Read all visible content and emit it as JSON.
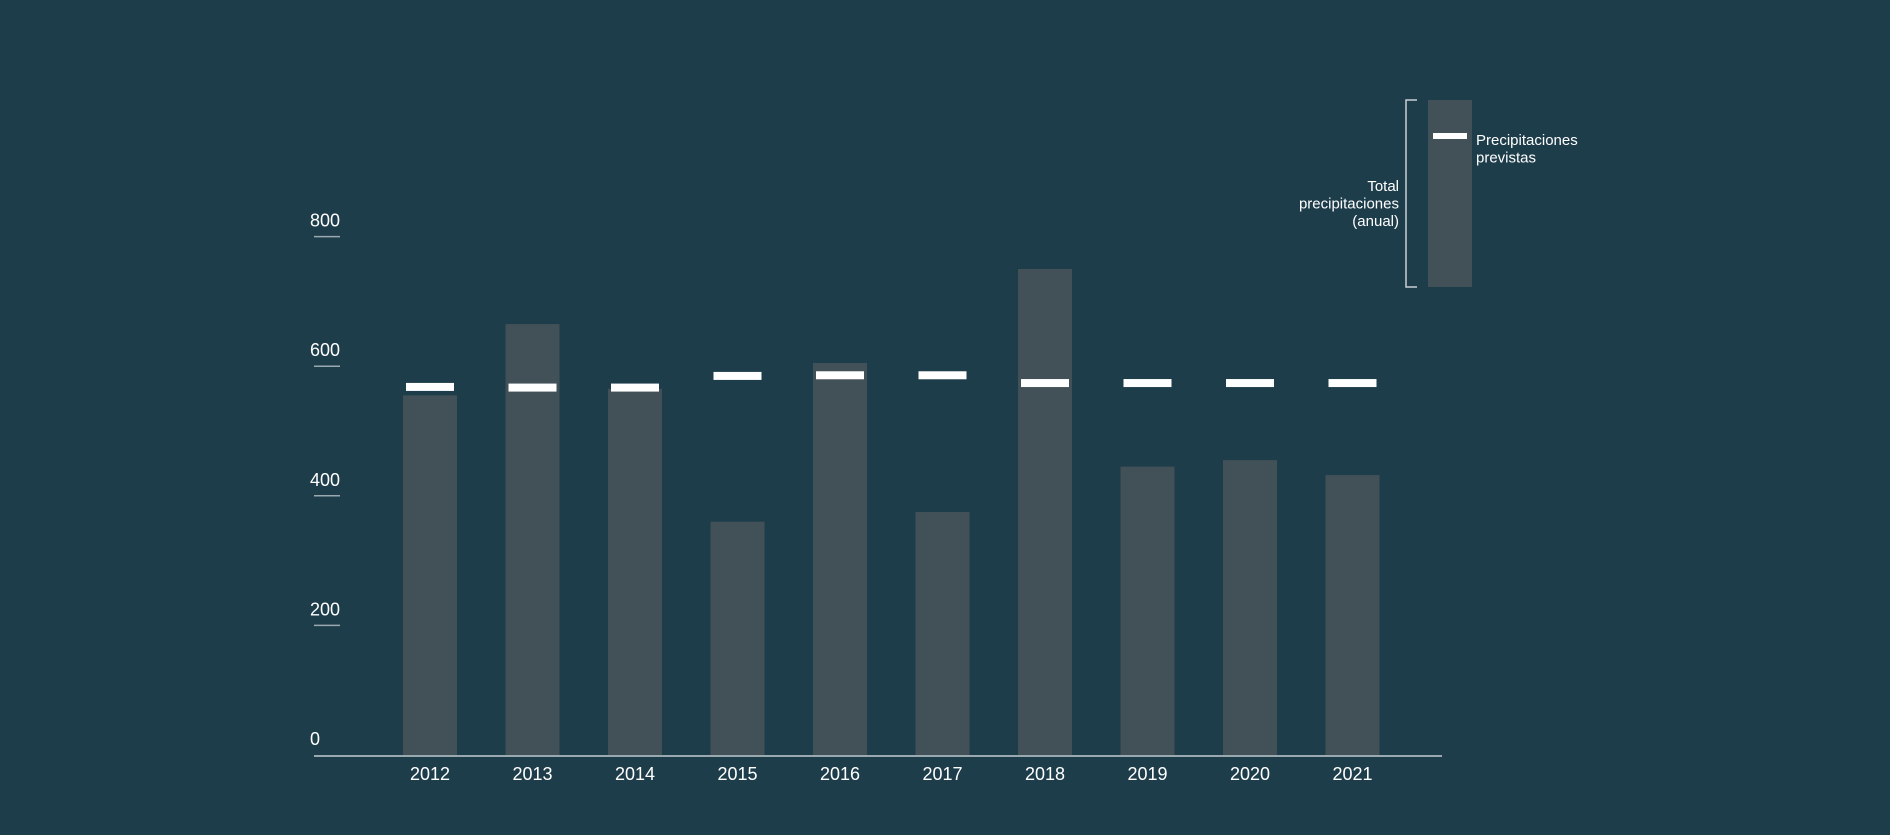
{
  "colors": {
    "background": "#1e3d4b",
    "bar": "#425158",
    "marker": "#ffffff",
    "axis": "#9aa9b0"
  },
  "legend": {
    "bar_label": [
      "Total",
      "precipitaciones",
      "(anual)"
    ],
    "marker_label": [
      "Precipitaciones",
      "previstas"
    ]
  },
  "chart_data": {
    "type": "bar",
    "title": "",
    "xlabel": "",
    "ylabel": "",
    "ylim": [
      0,
      800
    ],
    "yticks": [
      0,
      200,
      400,
      600,
      800
    ],
    "grid": false,
    "legend_position": "top-right",
    "categories": [
      "2012",
      "2013",
      "2014",
      "2015",
      "2016",
      "2017",
      "2018",
      "2019",
      "2020",
      "2021"
    ],
    "series": [
      {
        "name": "Total precipitaciones (anual)",
        "type": "bar",
        "values": [
          555,
          665,
          565,
          360,
          605,
          375,
          750,
          445,
          455,
          432
        ]
      },
      {
        "name": "Precipitaciones previstas",
        "type": "marker",
        "values": [
          568,
          567,
          567,
          585,
          586,
          586,
          574,
          574,
          574,
          574
        ]
      }
    ]
  }
}
